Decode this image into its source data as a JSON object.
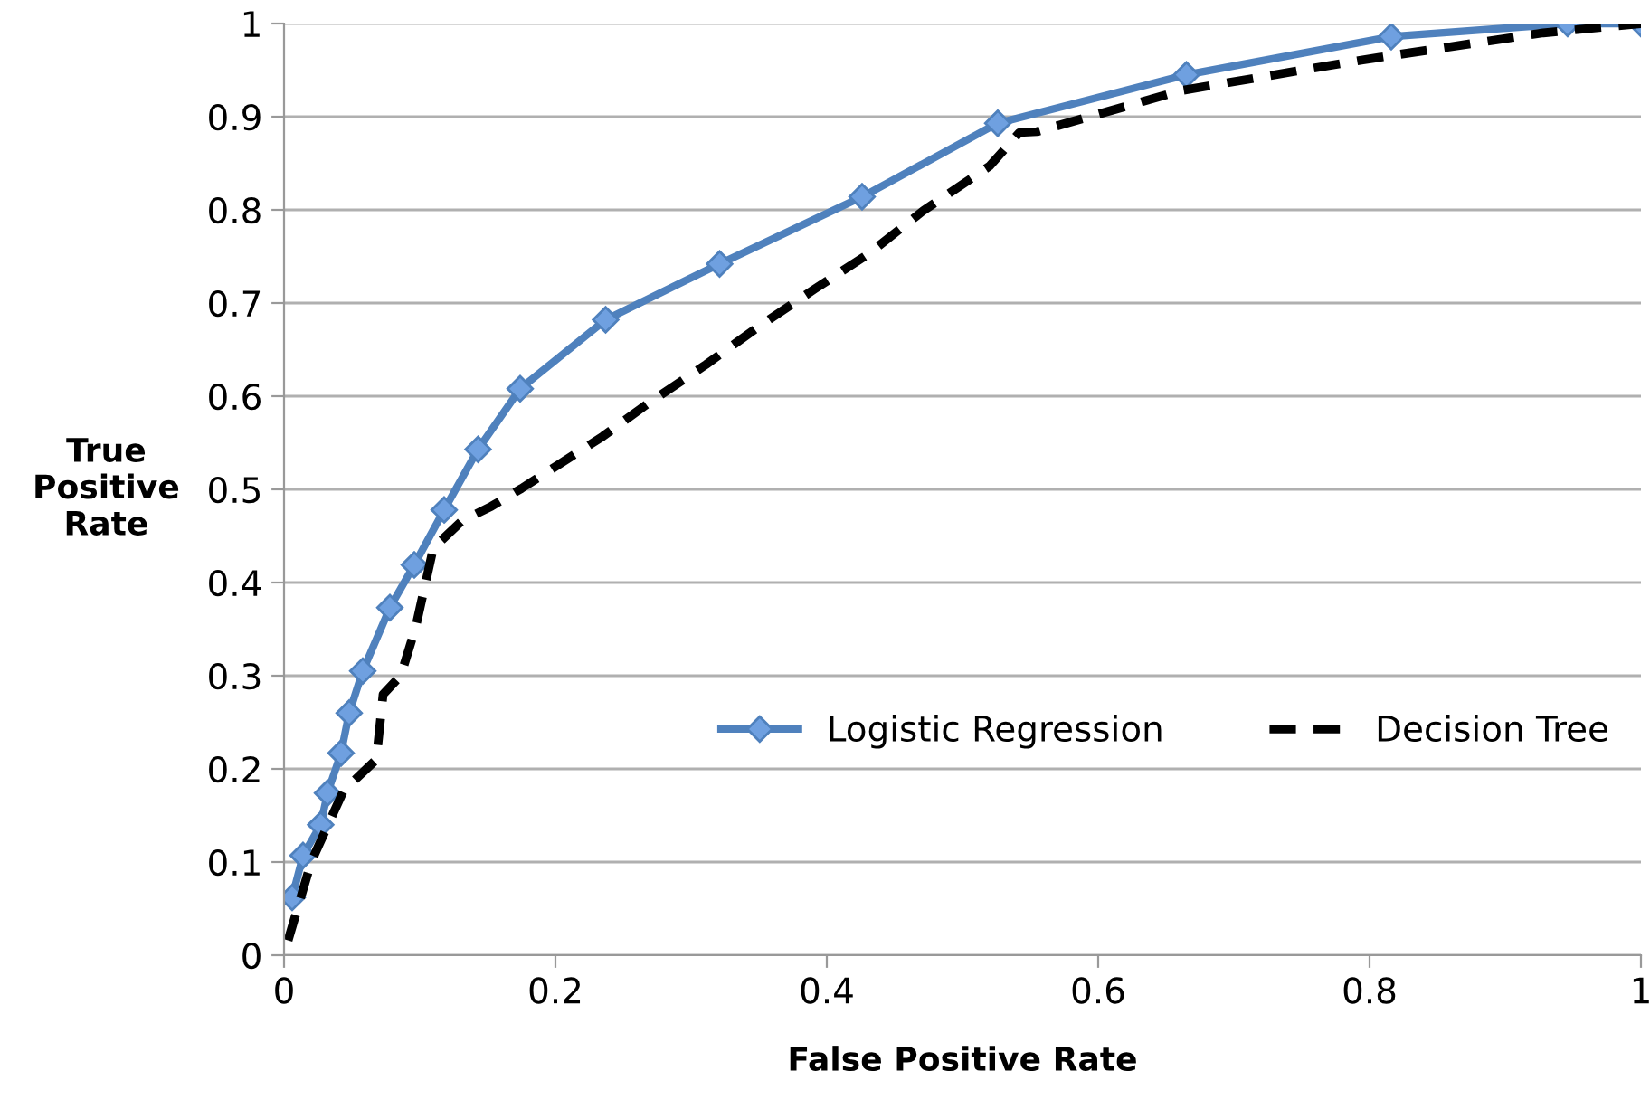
{
  "chart_data": {
    "type": "line",
    "xlabel": "False Positive Rate",
    "ylabel": "True\nPositive\nRate",
    "xlim": [
      0,
      1
    ],
    "ylim": [
      0,
      1
    ],
    "xticks": [
      0,
      0.2,
      0.4,
      0.6,
      0.8,
      1
    ],
    "yticks": [
      0,
      0.1,
      0.2,
      0.3,
      0.4,
      0.5,
      0.6,
      0.7,
      0.8,
      0.9,
      1
    ],
    "grid": "y",
    "legend": "right",
    "series": [
      {
        "name": "Logistic Regression",
        "color": "#4f81bd",
        "marker": "diamond",
        "line_style": "solid",
        "x": [
          0.006,
          0.014,
          0.027,
          0.032,
          0.042,
          0.048,
          0.058,
          0.078,
          0.096,
          0.118,
          0.143,
          0.174,
          0.237,
          0.321,
          0.426,
          0.526,
          0.665,
          0.816,
          0.946,
          1.0
        ],
        "values": [
          0.062,
          0.107,
          0.14,
          0.174,
          0.217,
          0.26,
          0.305,
          0.373,
          0.419,
          0.478,
          0.543,
          0.608,
          0.682,
          0.742,
          0.814,
          0.893,
          0.945,
          0.986,
          1.0,
          1.0
        ]
      },
      {
        "name": "Decision Tree",
        "color": "#000000",
        "marker": "none",
        "line_style": "dashed",
        "x": [
          0.003,
          0.02,
          0.044,
          0.068,
          0.073,
          0.086,
          0.097,
          0.11,
          0.131,
          0.153,
          0.175,
          0.235,
          0.268,
          0.311,
          0.351,
          0.391,
          0.431,
          0.471,
          0.52,
          0.542,
          0.555,
          0.661,
          0.795,
          0.928,
          1.0
        ],
        "values": [
          0.016,
          0.1,
          0.177,
          0.21,
          0.28,
          0.3,
          0.352,
          0.437,
          0.466,
          0.482,
          0.501,
          0.557,
          0.592,
          0.634,
          0.676,
          0.715,
          0.753,
          0.799,
          0.847,
          0.883,
          0.884,
          0.928,
          0.961,
          0.99,
          1.0
        ]
      }
    ]
  }
}
